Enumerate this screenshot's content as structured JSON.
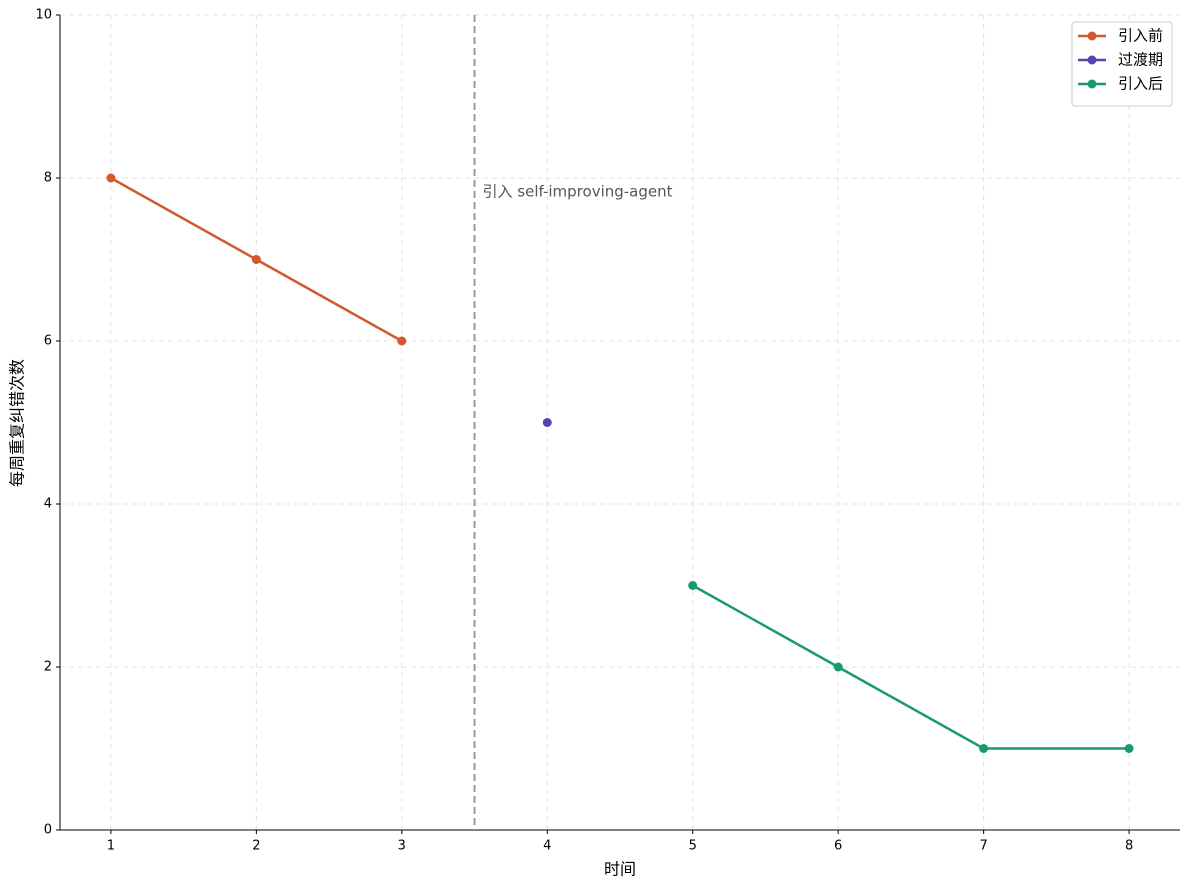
{
  "chart_data": {
    "type": "line",
    "xlabel": "时间",
    "ylabel": "每周重复纠错次数",
    "xlim": [
      0.65,
      8.35
    ],
    "xticks": [
      1,
      2,
      3,
      4,
      5,
      6,
      7,
      8
    ],
    "ylim": [
      0,
      10
    ],
    "yticks": [
      0,
      2,
      4,
      6,
      8,
      10
    ],
    "grid": true,
    "legend": "upper right",
    "vline": 3.5,
    "annotation": "引入 self-improving-agent",
    "series": [
      {
        "name": "引入前",
        "color": "#d1592d",
        "x": [
          1,
          2,
          3
        ],
        "values": [
          8,
          7,
          6
        ]
      },
      {
        "name": "过渡期",
        "color": "#5046b4",
        "x": [
          4
        ],
        "values": [
          5
        ]
      },
      {
        "name": "引入后",
        "color": "#1a9a6c",
        "x": [
          5,
          6,
          7,
          8
        ],
        "values": [
          3,
          2,
          1,
          1
        ]
      }
    ]
  }
}
